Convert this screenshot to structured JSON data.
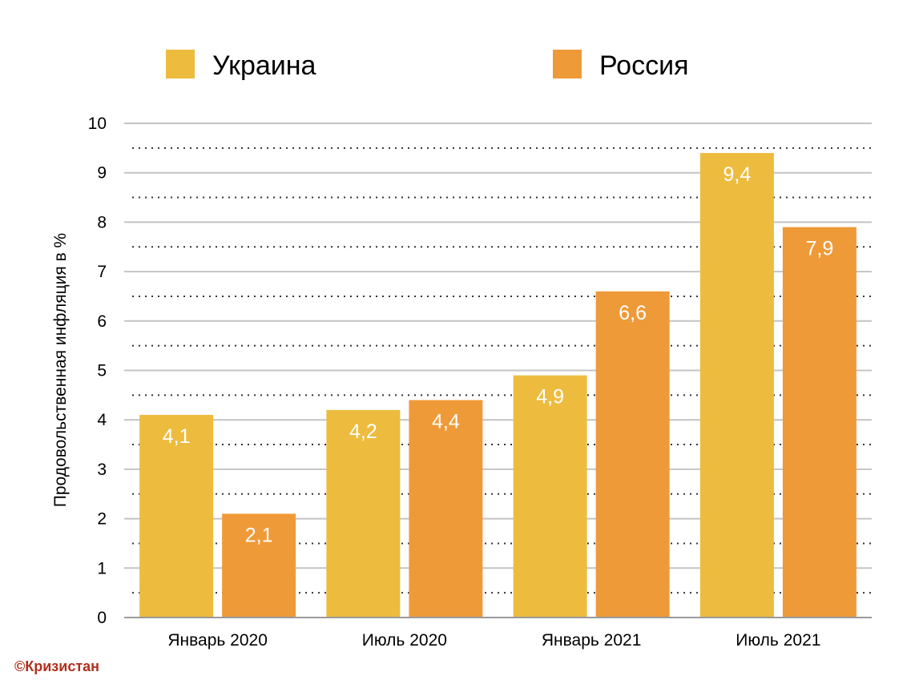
{
  "chart_data": {
    "type": "bar",
    "title": "",
    "xlabel": "",
    "ylabel": "Продовольственная инфляция в %",
    "categories": [
      "Январь 2020",
      "Июль 2020",
      "Январь 2021",
      "Июль 2021"
    ],
    "series": [
      {
        "name": "Украина",
        "color": "#edbc3f",
        "values": [
          4.1,
          4.2,
          4.9,
          9.4
        ],
        "labels": [
          "4,1",
          "4,2",
          "4,9",
          "9,4"
        ]
      },
      {
        "name": "Россия",
        "color": "#ef9a38",
        "values": [
          2.1,
          4.4,
          6.6,
          7.9
        ],
        "labels": [
          "2,1",
          "4,4",
          "6,6",
          "7,9"
        ]
      }
    ],
    "ylim": [
      0,
      10
    ],
    "yticks": [
      "0",
      "1",
      "2",
      "3",
      "4",
      "5",
      "6",
      "7",
      "8",
      "9",
      "10"
    ],
    "grid": true,
    "minor_grid": "dotted",
    "legend_position": "top"
  },
  "watermark": "©Кризистан"
}
